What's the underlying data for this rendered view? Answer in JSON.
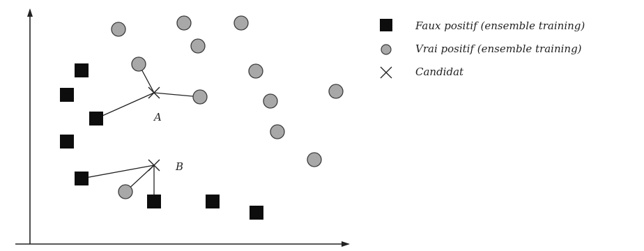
{
  "colors": {
    "square_fill": "#0d0d0d",
    "circle_fill": "#a8a8a8",
    "circle_stroke": "#3a3a3a",
    "line": "#222222"
  },
  "legend": {
    "items": [
      {
        "symbol": "square",
        "label": "Faux positif (ensemble training)"
      },
      {
        "symbol": "circle",
        "label": "Vrai positif (ensemble training)"
      },
      {
        "symbol": "cross",
        "label": "Candidat"
      }
    ]
  },
  "candidates": [
    {
      "label": "A"
    },
    {
      "label": "B"
    }
  ]
}
